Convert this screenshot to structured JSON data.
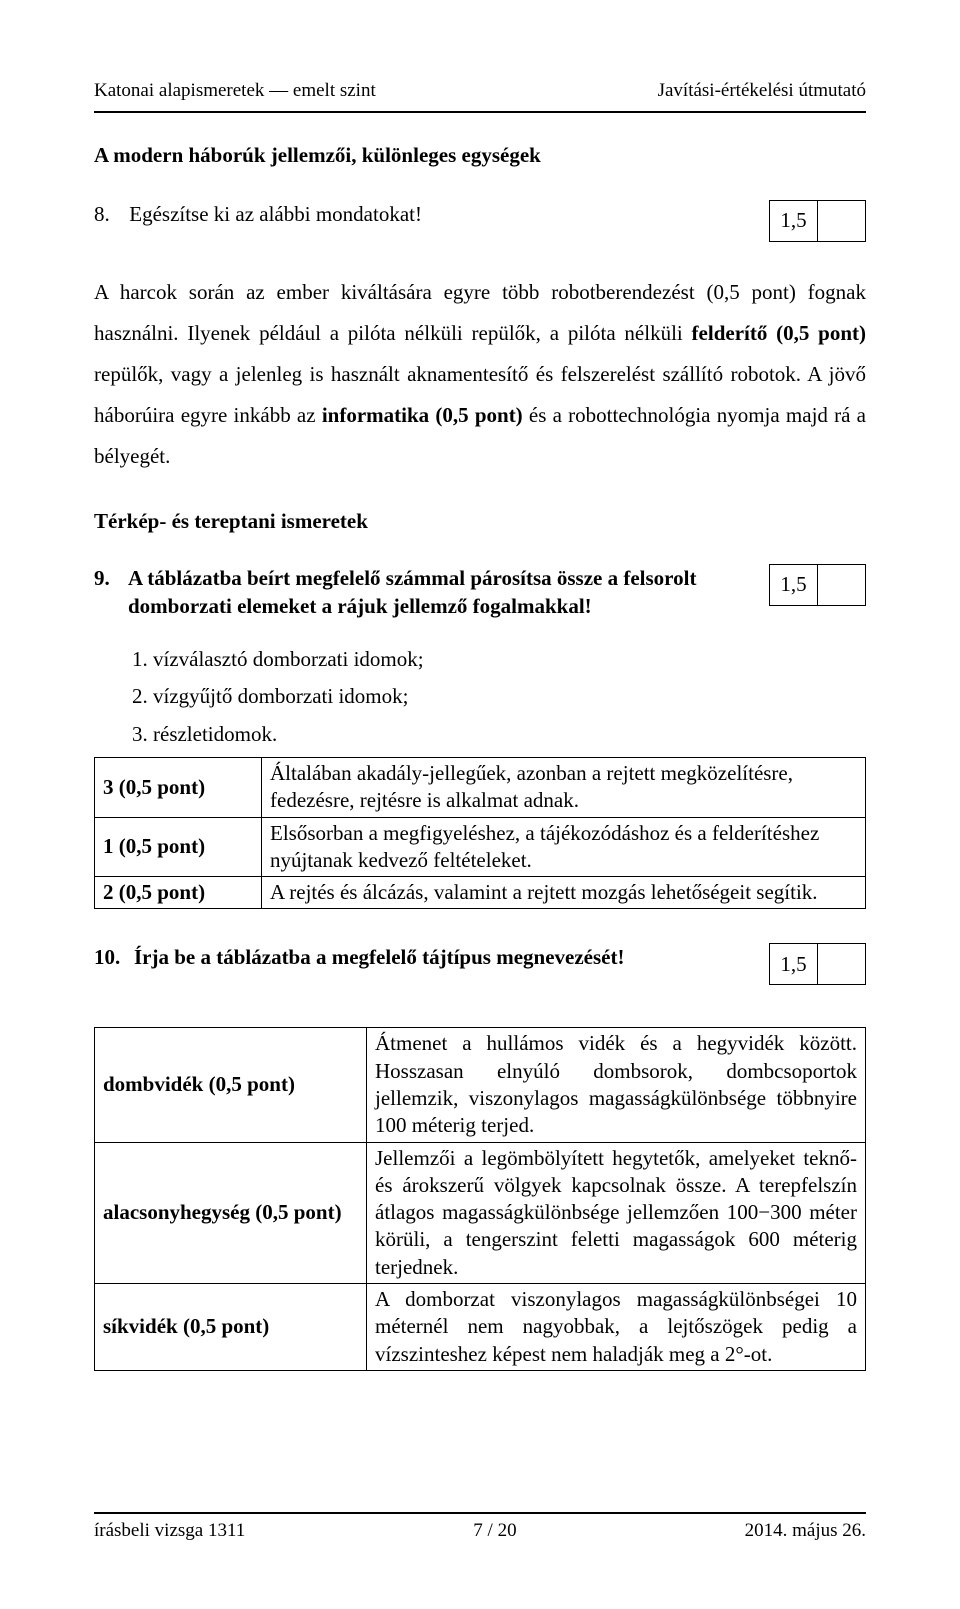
{
  "header": {
    "left": "Katonai alapismeretek — emelt szint",
    "right": "Javítási-értékelési útmutató"
  },
  "section_title": "A modern háborúk jellemzői, különleges egységek",
  "q8": {
    "number": "8.",
    "text": "Egészítse ki az alábbi mondatokat!",
    "score": "1,5"
  },
  "body_para_parts": {
    "p1": "A harcok során az ember kiváltására egyre több robotberendezést (0,5 pont) fognak használni. Ilyenek például a pilóta nélküli repülők, a pilóta nélküli ",
    "b1": "felderítő (0,5 pont)",
    "p2": " repülők, vagy a jelenleg is használt aknamentesítő és felszerelést szállító robotok. A jövő háborúira egyre inkább az ",
    "b2": "informatika (0,5 pont)",
    "p3": " és a robottechnológia nyomja majd rá a bélyegét."
  },
  "sub_heading": "Térkép- és tereptani ismeretek",
  "q9": {
    "number": "9.",
    "text": "A táblázatba beírt megfelelő számmal párosítsa össze a felsorolt domborzati elemeket a rájuk jellemző fogalmakkal!",
    "score": "1,5"
  },
  "list_items": [
    "1.  vízválasztó domborzati idomok;",
    "2.  vízgyűjtő domborzati idomok;",
    "3.  részletidomok."
  ],
  "table1": [
    {
      "left": "3 (0,5 pont)",
      "right": "Általában akadály-jellegűek, azonban a rejtett megközelítésre, fedezésre, rejtésre is alkalmat adnak."
    },
    {
      "left": "1 (0,5 pont)",
      "right": "Elsősorban a megfigyeléshez, a tájékozódáshoz és a felderítéshez nyújtanak kedvező feltételeket."
    },
    {
      "left": "2 (0,5 pont)",
      "right": "A rejtés és álcázás, valamint a rejtett mozgás lehetőségeit segítik."
    }
  ],
  "q10": {
    "number": "10.",
    "text": "Írja be a táblázatba a megfelelő tájtípus megnevezését!",
    "score": "1,5"
  },
  "table2": [
    {
      "left": "dombvidék (0,5 pont)",
      "right": "Átmenet a hullámos vidék és a hegyvidék között. Hosszasan elnyúló dombsorok, dombcsoportok jellemzik, viszonylagos magasságkülönbsége többnyire 100 méterig terjed."
    },
    {
      "left": "alacsonyhegység (0,5 pont)",
      "right": "Jellemzői a legömbölyített hegytetők, amelyeket teknő- és árokszerű völgyek kapcsolnak össze. A terepfelszín átlagos magasságkülönbsége jellemzően 100−300 méter körüli, a tengerszint feletti magasságok 600 méterig terjednek."
    },
    {
      "left": "síkvidék (0,5 pont)",
      "right": "A domborzat viszonylagos magasságkülönbségei 10 méter­nél nem nagyobbak, a lejtőszögek pedig a vízszinteshez képest nem haladják meg a 2°-ot."
    }
  ],
  "footer": {
    "left": "írásbeli vizsga 1311",
    "center": "7 / 20",
    "right": "2014. május 26."
  }
}
